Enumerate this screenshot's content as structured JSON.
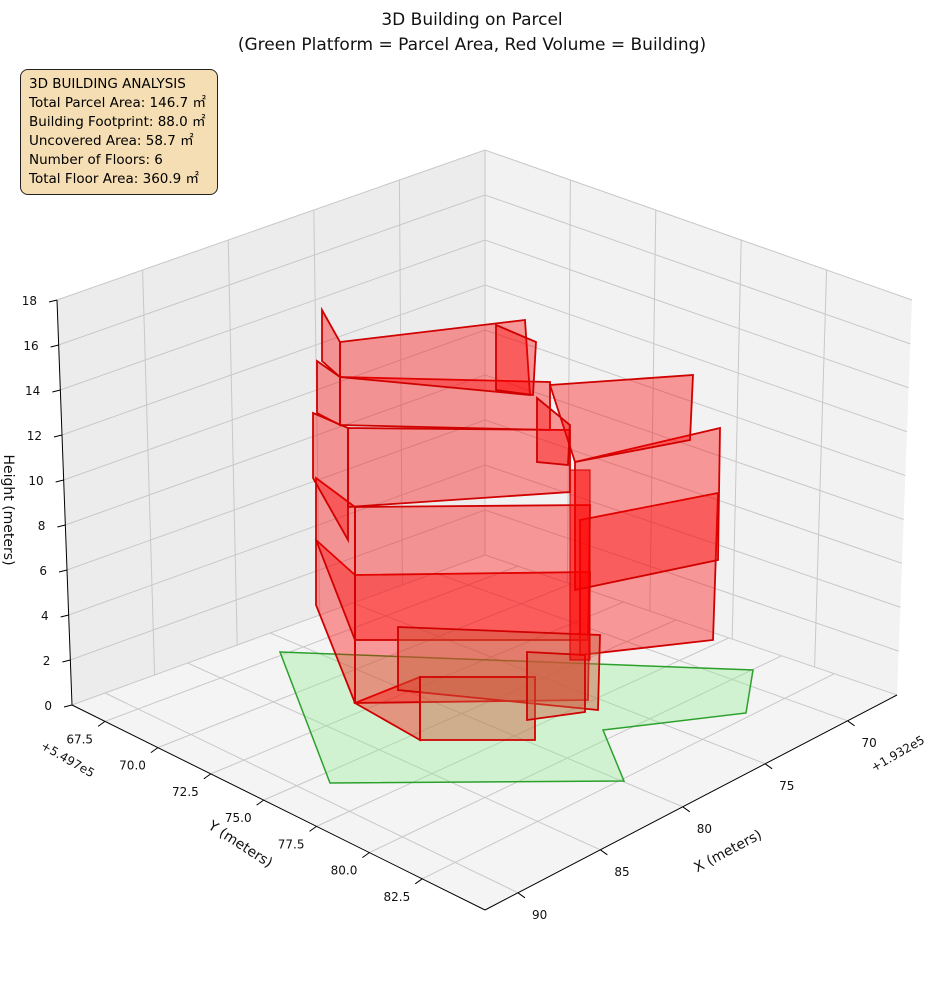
{
  "chart_data": {
    "type": "3d-polygon",
    "title": "3D Building on Parcel",
    "subtitle": "(Green Platform = Parcel Area, Red Volume = Building)",
    "xlabel": "X (meters)",
    "ylabel": "Y (meters)",
    "zlabel": "Height (meters)",
    "x_offset": "+1.932e5",
    "y_offset": "+5.497e5",
    "x_ticks": [
      "70",
      "75",
      "80",
      "85",
      "90"
    ],
    "y_ticks": [
      "67.5",
      "70.0",
      "72.5",
      "75.0",
      "77.5",
      "80.0",
      "82.5"
    ],
    "z_ticks": [
      "0",
      "2",
      "4",
      "6",
      "8",
      "10",
      "12",
      "14",
      "16",
      "18"
    ],
    "zlim": [
      0,
      18
    ],
    "grid": true,
    "series": [
      {
        "name": "Parcel Area",
        "color": "#2ca02c",
        "fill": "#90ee90"
      },
      {
        "name": "Building",
        "color": "#ff0000",
        "fill": "#ff0000",
        "floors": 6
      }
    ],
    "info_box": {
      "heading": "3D BUILDING ANALYSIS",
      "lines": [
        "Total Parcel Area: 146.7 ㎡",
        "Building Footprint: 88.0 ㎡",
        "Uncovered Area: 58.7 ㎡",
        "Number of Floors: 6",
        "Total Floor Area: 360.9 ㎡"
      ]
    }
  }
}
